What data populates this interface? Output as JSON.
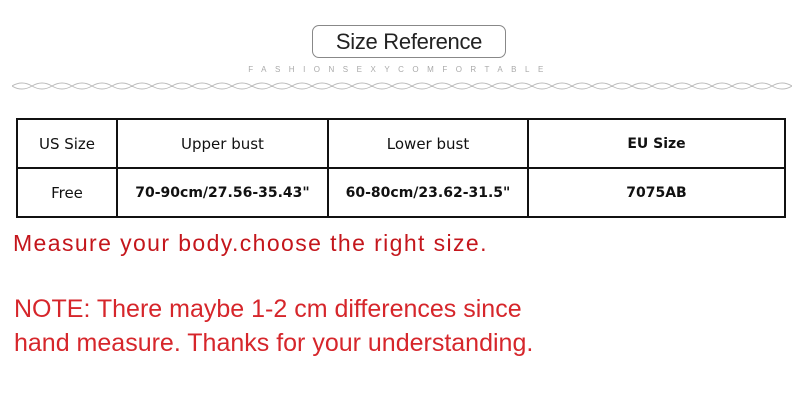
{
  "header": {
    "title": "Size Reference",
    "tagline": "FASHIONSEXYCOMFORTABLE"
  },
  "table": {
    "headers": [
      "US Size",
      "Upper bust",
      "Lower bust",
      "EU Size"
    ],
    "rows": [
      [
        "Free",
        "70-90cm/27.56-35.43\"",
        "60-80cm/23.62-31.5\"",
        "7075AB"
      ]
    ]
  },
  "notes": {
    "measure": "Measure your body.choose the right size.",
    "note_line1": "NOTE: There maybe 1-2 cm differences since",
    "note_line2": "hand measure. Thanks for your understanding."
  },
  "colors": {
    "accent_red": "#c4161c"
  }
}
